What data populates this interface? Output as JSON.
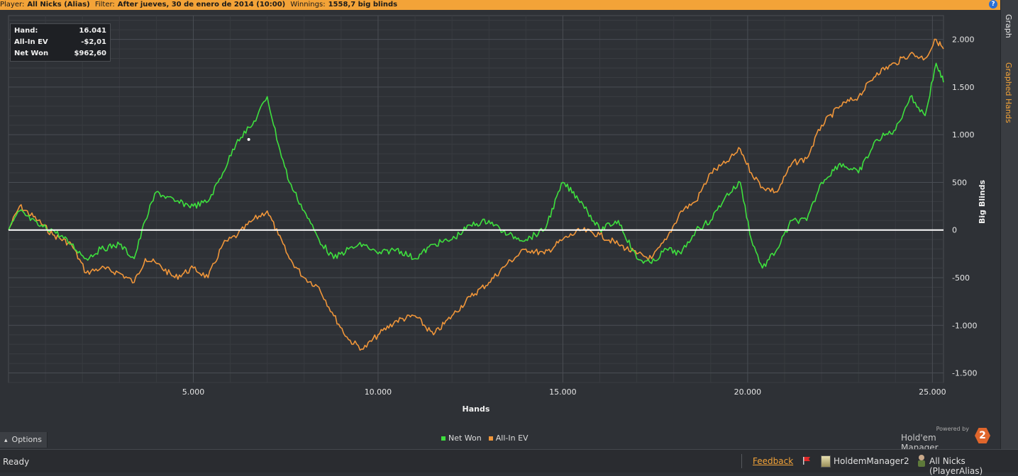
{
  "header": {
    "player_label": "Player:",
    "player_value": "All Nicks (Alias)",
    "filter_label": "Filter:",
    "filter_value": "After jueves, 30 de enero de 2014 (10:00)",
    "winnings_label": "Winnings:",
    "winnings_value": "1558,7 big blinds",
    "help_glyph": "?"
  },
  "side_tabs": {
    "graph": "Graph",
    "graphed_hands": "Graphed Hands"
  },
  "tooltip": {
    "rows": [
      {
        "label": "Hand:",
        "value": "16.041"
      },
      {
        "label": "All-In EV",
        "value": "-$2,01"
      },
      {
        "label": "Net Won",
        "value": "$962,60"
      }
    ]
  },
  "options_label": "Options",
  "powered": {
    "small": "Powered by",
    "name": "Hold'em Manager",
    "badge": "2"
  },
  "status": {
    "ready": "Ready",
    "feedback": "Feedback",
    "app_name": "HoldemManager2",
    "player": "All Nicks (PlayerAlias)"
  },
  "colors": {
    "net_won": "#3ee03e",
    "all_in_ev": "#f0963a",
    "zero_line": "#ffffff",
    "accent": "#f3a338"
  },
  "chart_data": {
    "type": "line",
    "xlabel": "Hands",
    "ylabel": "Big Blinds",
    "xlim": [
      0,
      25300
    ],
    "ylim": [
      -1600,
      2250
    ],
    "x_ticks": [
      5000,
      10000,
      15000,
      20000,
      25000
    ],
    "x_tick_labels": [
      "5.000",
      "10.000",
      "15.000",
      "20.000",
      "25.000"
    ],
    "y_ticks": [
      2000,
      1500,
      1000,
      500,
      0,
      -500,
      -1000,
      -1500
    ],
    "y_tick_labels": [
      "2.000",
      "1.500",
      "1.000",
      "500",
      "0",
      "-500",
      "-1.000",
      "-1.500"
    ],
    "grid": true,
    "legend_position": "bottom-center",
    "series": [
      {
        "name": "Net Won",
        "color": "#3ee03e",
        "x": [
          0,
          300,
          800,
          1200,
          1700,
          2100,
          2500,
          3000,
          3400,
          3700,
          4000,
          4500,
          5000,
          5400,
          5800,
          6200,
          6600,
          7000,
          7300,
          7600,
          8000,
          8400,
          8800,
          9200,
          9600,
          10000,
          10500,
          11000,
          11500,
          12000,
          12500,
          13000,
          13500,
          14000,
          14500,
          15000,
          15500,
          16000,
          16500,
          17000,
          17400,
          17800,
          18200,
          18600,
          19000,
          19400,
          19800,
          20100,
          20400,
          20800,
          21200,
          21600,
          22000,
          22500,
          23000,
          23500,
          24000,
          24400,
          24800,
          25100,
          25300
        ],
        "y": [
          0,
          200,
          50,
          0,
          -150,
          -300,
          -200,
          -150,
          -300,
          100,
          400,
          300,
          250,
          300,
          600,
          950,
          1100,
          1400,
          900,
          500,
          200,
          -100,
          -300,
          -200,
          -150,
          -250,
          -200,
          -300,
          -150,
          -100,
          50,
          100,
          -50,
          -100,
          0,
          500,
          300,
          0,
          100,
          -300,
          -350,
          -200,
          -250,
          0,
          100,
          350,
          500,
          -100,
          -400,
          -200,
          100,
          100,
          500,
          700,
          600,
          950,
          1050,
          1400,
          1200,
          1750,
          1550
        ]
      },
      {
        "name": "All-In EV",
        "color": "#f0963a",
        "x": [
          0,
          300,
          800,
          1200,
          1700,
          2100,
          2500,
          3000,
          3400,
          3700,
          4000,
          4500,
          5000,
          5400,
          5800,
          6200,
          6600,
          7000,
          7300,
          7600,
          8000,
          8400,
          8800,
          9200,
          9600,
          10000,
          10500,
          11000,
          11500,
          12000,
          12500,
          13000,
          13500,
          14000,
          14500,
          15000,
          15500,
          16000,
          16500,
          17000,
          17400,
          17800,
          18200,
          18600,
          19000,
          19400,
          19800,
          20100,
          20400,
          20800,
          21200,
          21600,
          22000,
          22500,
          23000,
          23500,
          24000,
          24400,
          24800,
          25100,
          25300
        ],
        "y": [
          0,
          250,
          100,
          -50,
          -150,
          -450,
          -400,
          -450,
          -550,
          -300,
          -350,
          -500,
          -400,
          -500,
          -150,
          -50,
          100,
          200,
          -50,
          -300,
          -500,
          -600,
          -900,
          -1150,
          -1250,
          -1100,
          -950,
          -900,
          -1100,
          -900,
          -700,
          -550,
          -350,
          -200,
          -250,
          -100,
          0,
          -50,
          -150,
          -250,
          -300,
          -100,
          200,
          300,
          600,
          700,
          850,
          600,
          450,
          400,
          700,
          750,
          1100,
          1300,
          1400,
          1650,
          1750,
          1850,
          1800,
          2000,
          1900
        ]
      }
    ]
  }
}
